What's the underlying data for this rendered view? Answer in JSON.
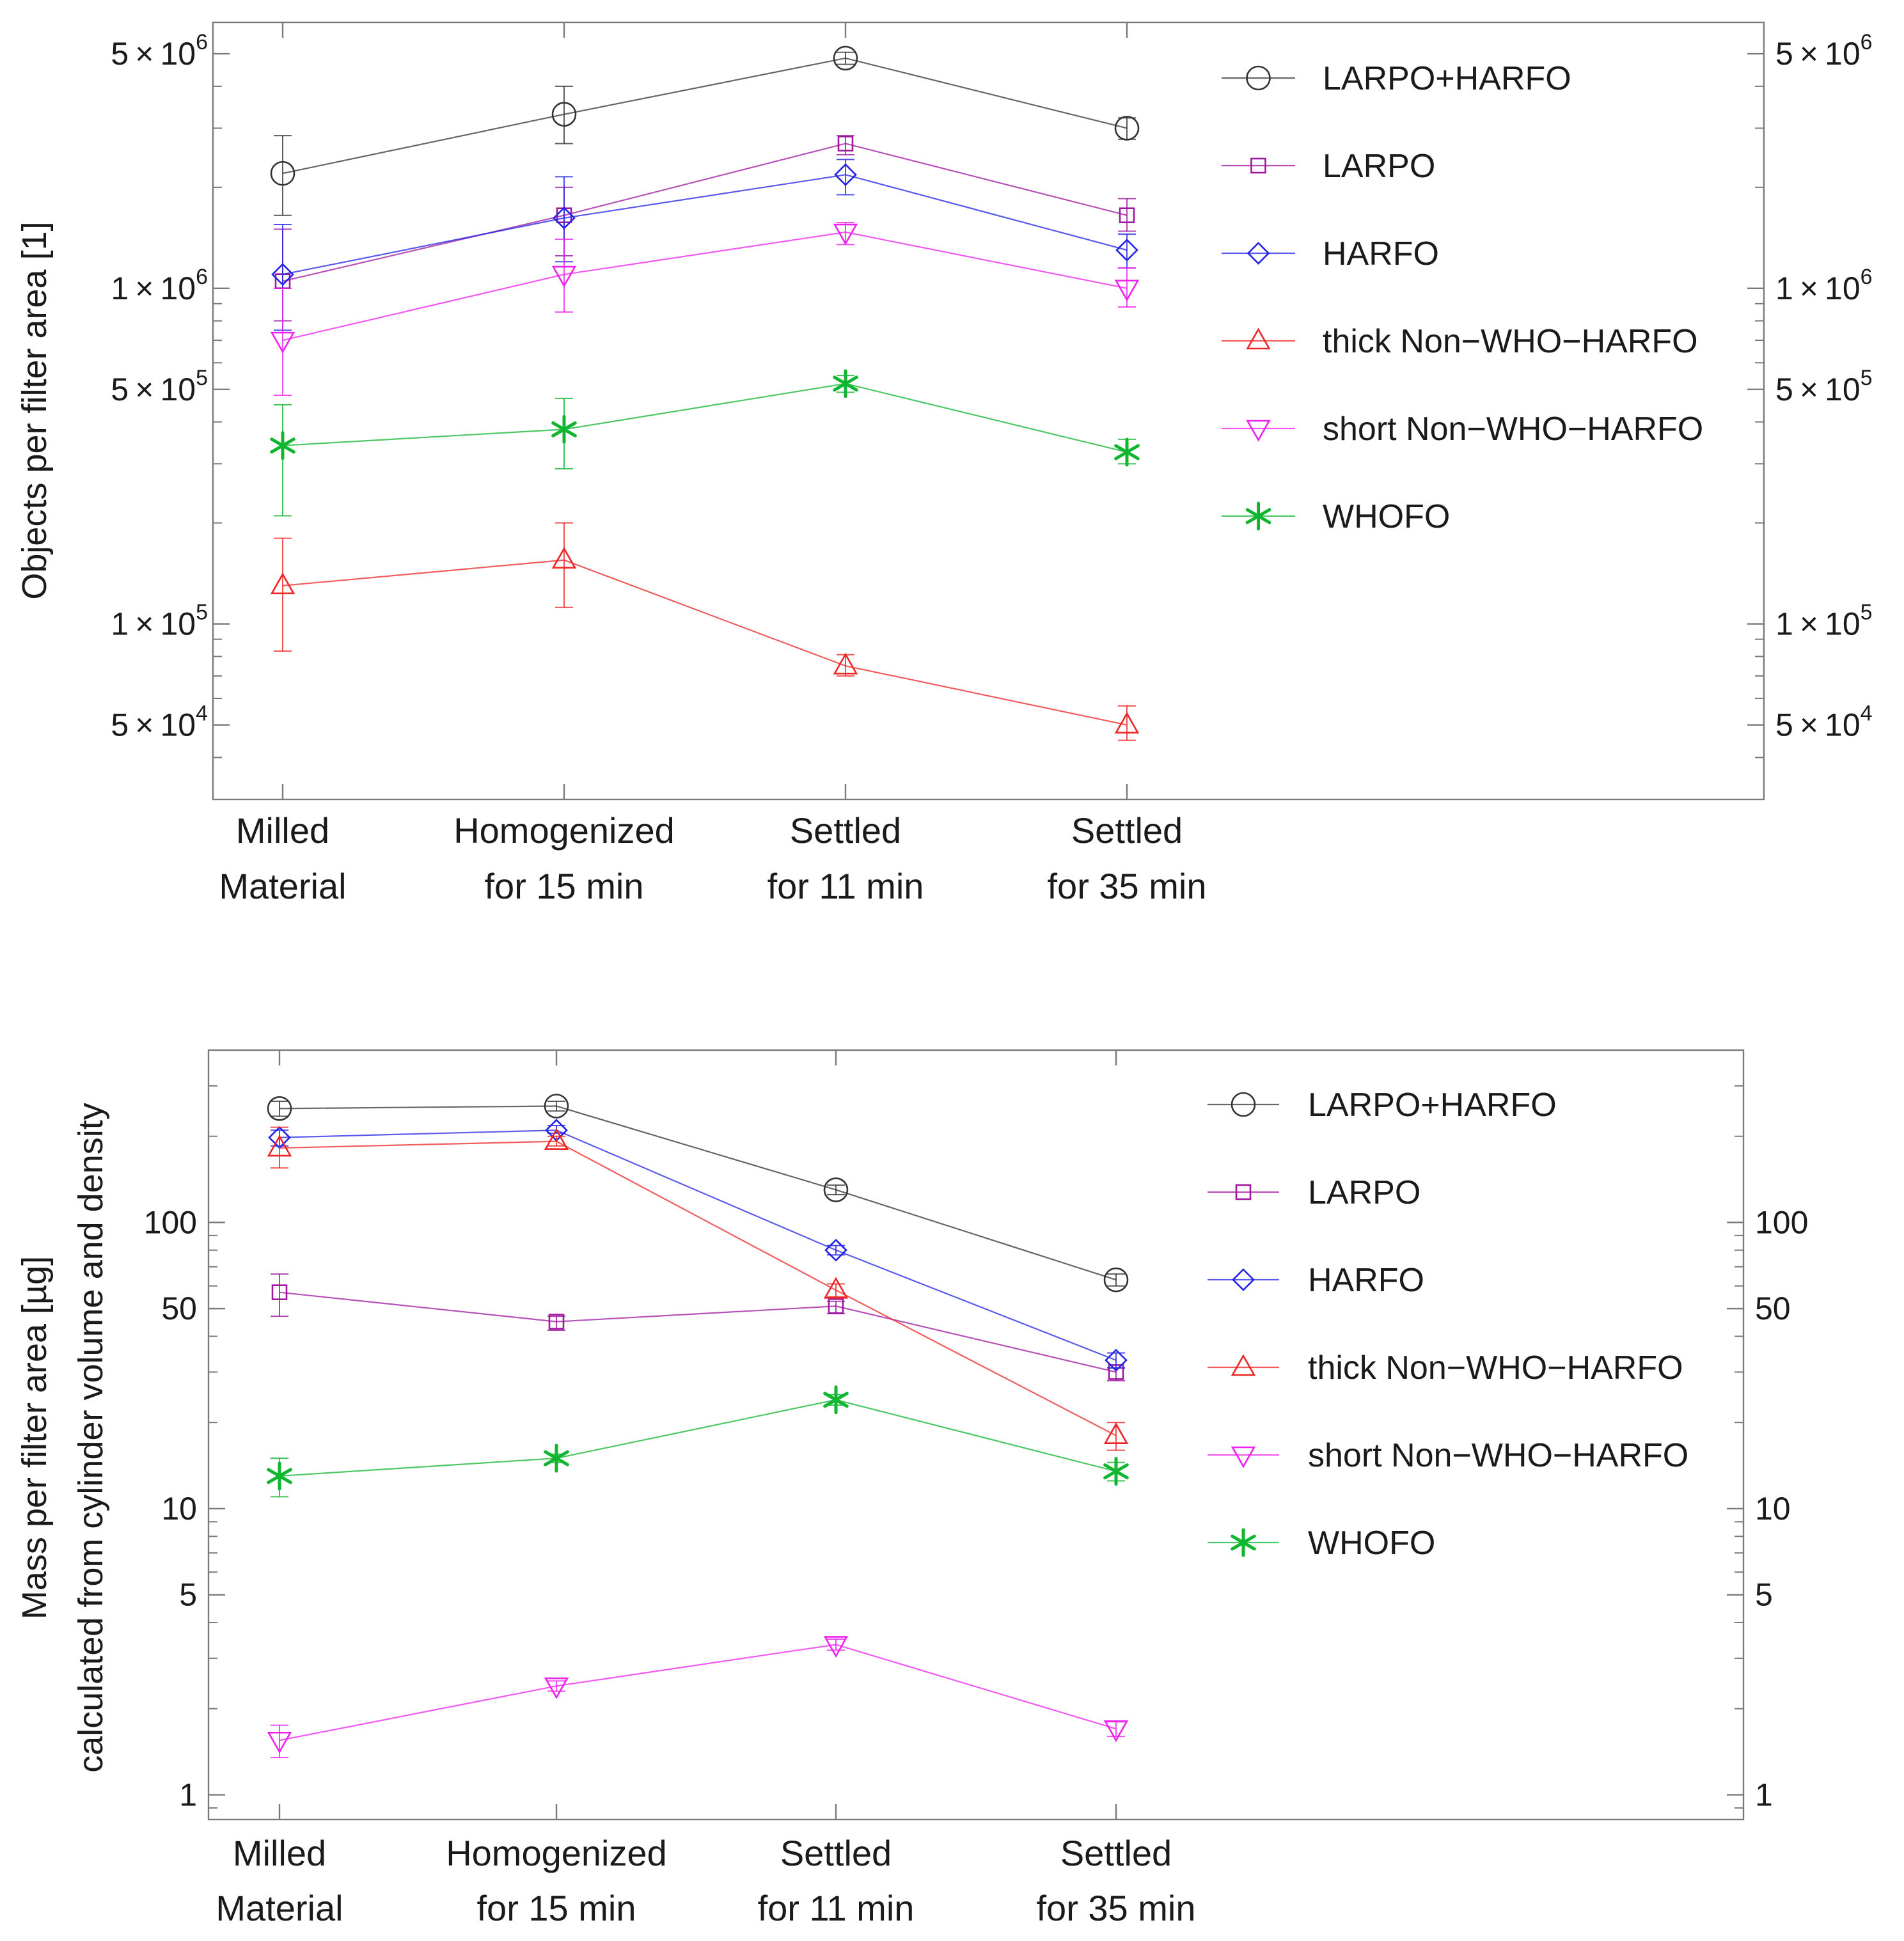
{
  "categories_top": [
    [
      "Milled",
      "Material"
    ],
    [
      "Homogenized",
      "for 15 min"
    ],
    [
      "Settled",
      "for 11 min"
    ],
    [
      "Settled",
      "for 35 min"
    ]
  ],
  "categories_bottom": [
    [
      "Milled",
      "Material"
    ],
    [
      "Homogenized",
      "for 15 min"
    ],
    [
      "Settled",
      "for 11 min"
    ],
    [
      "Settled",
      "for 35 min"
    ]
  ],
  "series_styles": [
    {
      "name": "LARPO+HARFO",
      "color": "#333333",
      "marker": "circle"
    },
    {
      "name": "LARPO",
      "color": "#a0179f",
      "marker": "square"
    },
    {
      "name": "HARFO",
      "color": "#2323e6",
      "marker": "diamond"
    },
    {
      "name": "thick Non−WHO−HARFO",
      "color": "#ee2525",
      "marker": "triangle-up"
    },
    {
      "name": "short Non−WHO−HARFO",
      "color": "#ee22ee",
      "marker": "triangle-down"
    },
    {
      "name": "WHOFO",
      "color": "#10b530",
      "marker": "star"
    }
  ],
  "chart_data": [
    {
      "type": "line",
      "title": "",
      "xlabel": "",
      "ylabel": "Objects per filter area [1]",
      "yscale": "log",
      "ylim": [
        30000,
        6200000
      ],
      "ytick_labels": [
        {
          "value": 5000000,
          "mant": "5 × 10",
          "exp": "6"
        },
        {
          "value": 1000000,
          "mant": "1 × 10",
          "exp": "6"
        },
        {
          "value": 500000,
          "mant": "5 × 10",
          "exp": "5"
        },
        {
          "value": 100000,
          "mant": "1 × 10",
          "exp": "5"
        },
        {
          "value": 50000,
          "mant": "5 × 10",
          "exp": "4"
        }
      ],
      "series": [
        {
          "name": "LARPO+HARFO",
          "values": [
            2200000,
            3300000,
            4850000,
            3000000
          ],
          "err_low": [
            1650000,
            2700000,
            4650000,
            2780000
          ],
          "err_high": [
            2850000,
            4000000,
            5050000,
            3220000
          ]
        },
        {
          "name": "LARPO",
          "values": [
            1050000,
            1650000,
            2700000,
            1650000
          ],
          "err_low": [
            800000,
            1250000,
            2500000,
            1480000
          ],
          "err_high": [
            1500000,
            2000000,
            2850000,
            1850000
          ]
        },
        {
          "name": "HARFO",
          "values": [
            1100000,
            1620000,
            2180000,
            1300000
          ],
          "err_low": [
            750000,
            1200000,
            1900000,
            1150000
          ],
          "err_high": [
            1550000,
            2150000,
            2420000,
            1450000
          ]
        },
        {
          "name": "thick Non−WHO−HARFO",
          "values": [
            130000,
            155000,
            75000,
            50000
          ],
          "err_low": [
            83000,
            112000,
            70000,
            45000
          ],
          "err_high": [
            180000,
            200000,
            81000,
            57000
          ]
        },
        {
          "name": "short Non−WHO−HARFO",
          "values": [
            700000,
            1100000,
            1470000,
            1000000
          ],
          "err_low": [
            480000,
            850000,
            1350000,
            880000
          ],
          "err_high": [
            1000000,
            1400000,
            1570000,
            1150000
          ]
        },
        {
          "name": "WHOFO",
          "values": [
            340000,
            380000,
            520000,
            325000
          ],
          "err_low": [
            210000,
            290000,
            490000,
            300000
          ],
          "err_high": [
            450000,
            470000,
            550000,
            355000
          ]
        }
      ]
    },
    {
      "type": "line",
      "title": "",
      "xlabel": "",
      "ylabel": "Mass per filter area [µg]",
      "ylabel_line2": "calculated from cylinder volume and density",
      "yscale": "log",
      "ylim": [
        0.82,
        400
      ],
      "ytick_labels": [
        {
          "value": 100,
          "text": "100"
        },
        {
          "value": 50,
          "text": "50"
        },
        {
          "value": 10,
          "text": "10"
        },
        {
          "value": 5,
          "text": "5"
        },
        {
          "value": 1,
          "text": "1"
        }
      ],
      "series": [
        {
          "name": "LARPO+HARFO",
          "values": [
            250,
            255,
            130,
            63
          ],
          "err_low": [
            235,
            245,
            125,
            60
          ],
          "err_high": [
            265,
            265,
            135,
            66
          ]
        },
        {
          "name": "LARPO",
          "values": [
            57,
            45,
            51,
            30
          ],
          "err_low": [
            47,
            42,
            48,
            28
          ],
          "err_high": [
            66,
            47,
            53,
            31
          ]
        },
        {
          "name": "HARFO",
          "values": [
            198,
            210,
            80,
            33
          ],
          "err_low": [
            185,
            205,
            77,
            31
          ],
          "err_high": [
            210,
            218,
            83,
            35
          ]
        },
        {
          "name": "thick Non−WHO−HARFO",
          "values": [
            182,
            192,
            58,
            18
          ],
          "err_low": [
            155,
            185,
            55,
            16
          ],
          "err_high": [
            215,
            200,
            61,
            20
          ]
        },
        {
          "name": "short Non−WHO−HARFO",
          "values": [
            1.55,
            2.4,
            3.35,
            1.7
          ],
          "err_low": [
            1.35,
            2.3,
            3.2,
            1.6
          ],
          "err_high": [
            1.75,
            2.5,
            3.5,
            1.8
          ]
        },
        {
          "name": "WHOFO",
          "values": [
            13,
            15,
            24,
            13.5
          ],
          "err_low": [
            11,
            14.5,
            23,
            12.5
          ],
          "err_high": [
            15,
            15.5,
            25,
            14.5
          ]
        }
      ]
    }
  ]
}
